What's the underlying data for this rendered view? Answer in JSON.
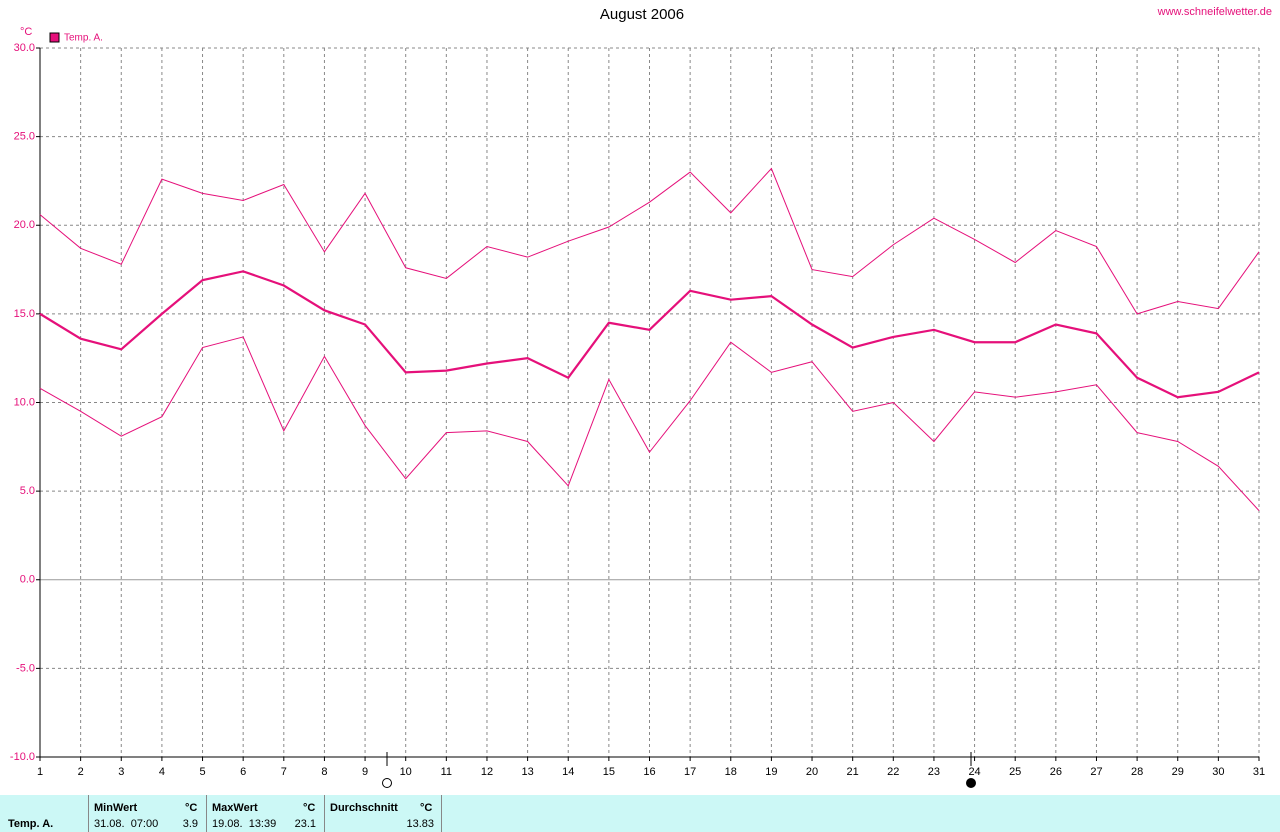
{
  "chart_data": {
    "type": "line",
    "title": "August 2006",
    "source": "www.schneifelwetter.de",
    "ylabel": "°C",
    "x": [
      1,
      2,
      3,
      4,
      5,
      6,
      7,
      8,
      9,
      10,
      11,
      12,
      13,
      14,
      15,
      16,
      17,
      18,
      19,
      20,
      21,
      22,
      23,
      24,
      25,
      26,
      27,
      28,
      29,
      30,
      31
    ],
    "xlim": [
      1,
      31
    ],
    "xticks": [
      1,
      2,
      3,
      4,
      5,
      6,
      7,
      8,
      9,
      10,
      11,
      12,
      13,
      14,
      15,
      16,
      17,
      18,
      19,
      20,
      21,
      22,
      23,
      24,
      25,
      26,
      27,
      28,
      29,
      30,
      31
    ],
    "ylim": [
      -10,
      30
    ],
    "yticks": [
      {
        "value": -10,
        "label": "-10.0"
      },
      {
        "value": -5,
        "label": "-5.0"
      },
      {
        "value": 0,
        "label": "0.0"
      },
      {
        "value": 5,
        "label": "5.0"
      },
      {
        "value": 10,
        "label": "10.0"
      },
      {
        "value": 15,
        "label": "15.0"
      },
      {
        "value": 20,
        "label": "20.0"
      },
      {
        "value": 25,
        "label": "25.0"
      },
      {
        "value": 30,
        "label": "30.0"
      }
    ],
    "grid": true,
    "series": [
      {
        "name": "Temp. A.",
        "color": "#e5107a",
        "values": [
          15.0,
          13.6,
          13.0,
          15.0,
          16.9,
          17.4,
          16.6,
          15.2,
          14.4,
          11.7,
          11.8,
          12.2,
          12.5,
          11.4,
          14.5,
          14.1,
          16.3,
          15.8,
          16.0,
          14.4,
          13.1,
          13.7,
          14.1,
          13.4,
          13.4,
          14.4,
          13.9,
          11.4,
          10.3,
          10.6,
          11.7
        ]
      },
      {
        "color": "#e5107a",
        "values": [
          20.6,
          18.7,
          17.8,
          22.6,
          21.8,
          21.4,
          22.3,
          18.5,
          21.8,
          17.6,
          17.0,
          18.8,
          18.2,
          19.1,
          19.9,
          21.3,
          23.0,
          20.7,
          23.2,
          17.5,
          17.1,
          18.9,
          20.4,
          19.2,
          17.9,
          19.7,
          18.8,
          15.0,
          15.7,
          15.3,
          18.5
        ]
      },
      {
        "color": "#e5107a",
        "values": [
          10.8,
          9.5,
          8.1,
          9.2,
          13.1,
          13.7,
          8.4,
          12.6,
          8.7,
          5.7,
          8.3,
          8.4,
          7.8,
          5.3,
          11.3,
          7.2,
          10.1,
          13.4,
          11.7,
          12.3,
          9.5,
          10.0,
          7.8,
          10.6,
          10.3,
          10.6,
          11.0,
          8.3,
          7.8,
          6.4,
          3.9
        ]
      }
    ]
  },
  "stats": {
    "label": "Temp. A.",
    "columns": [
      {
        "header": "MinWert",
        "unit": "°C",
        "time": "31.08.  07:00",
        "value": 3.9
      },
      {
        "header": "MaxWert",
        "unit": "°C",
        "time": "19.08.  13:39",
        "value": 23.1
      },
      {
        "header": "Durchschnitt",
        "unit": "°C",
        "value": 13.83
      }
    ]
  }
}
